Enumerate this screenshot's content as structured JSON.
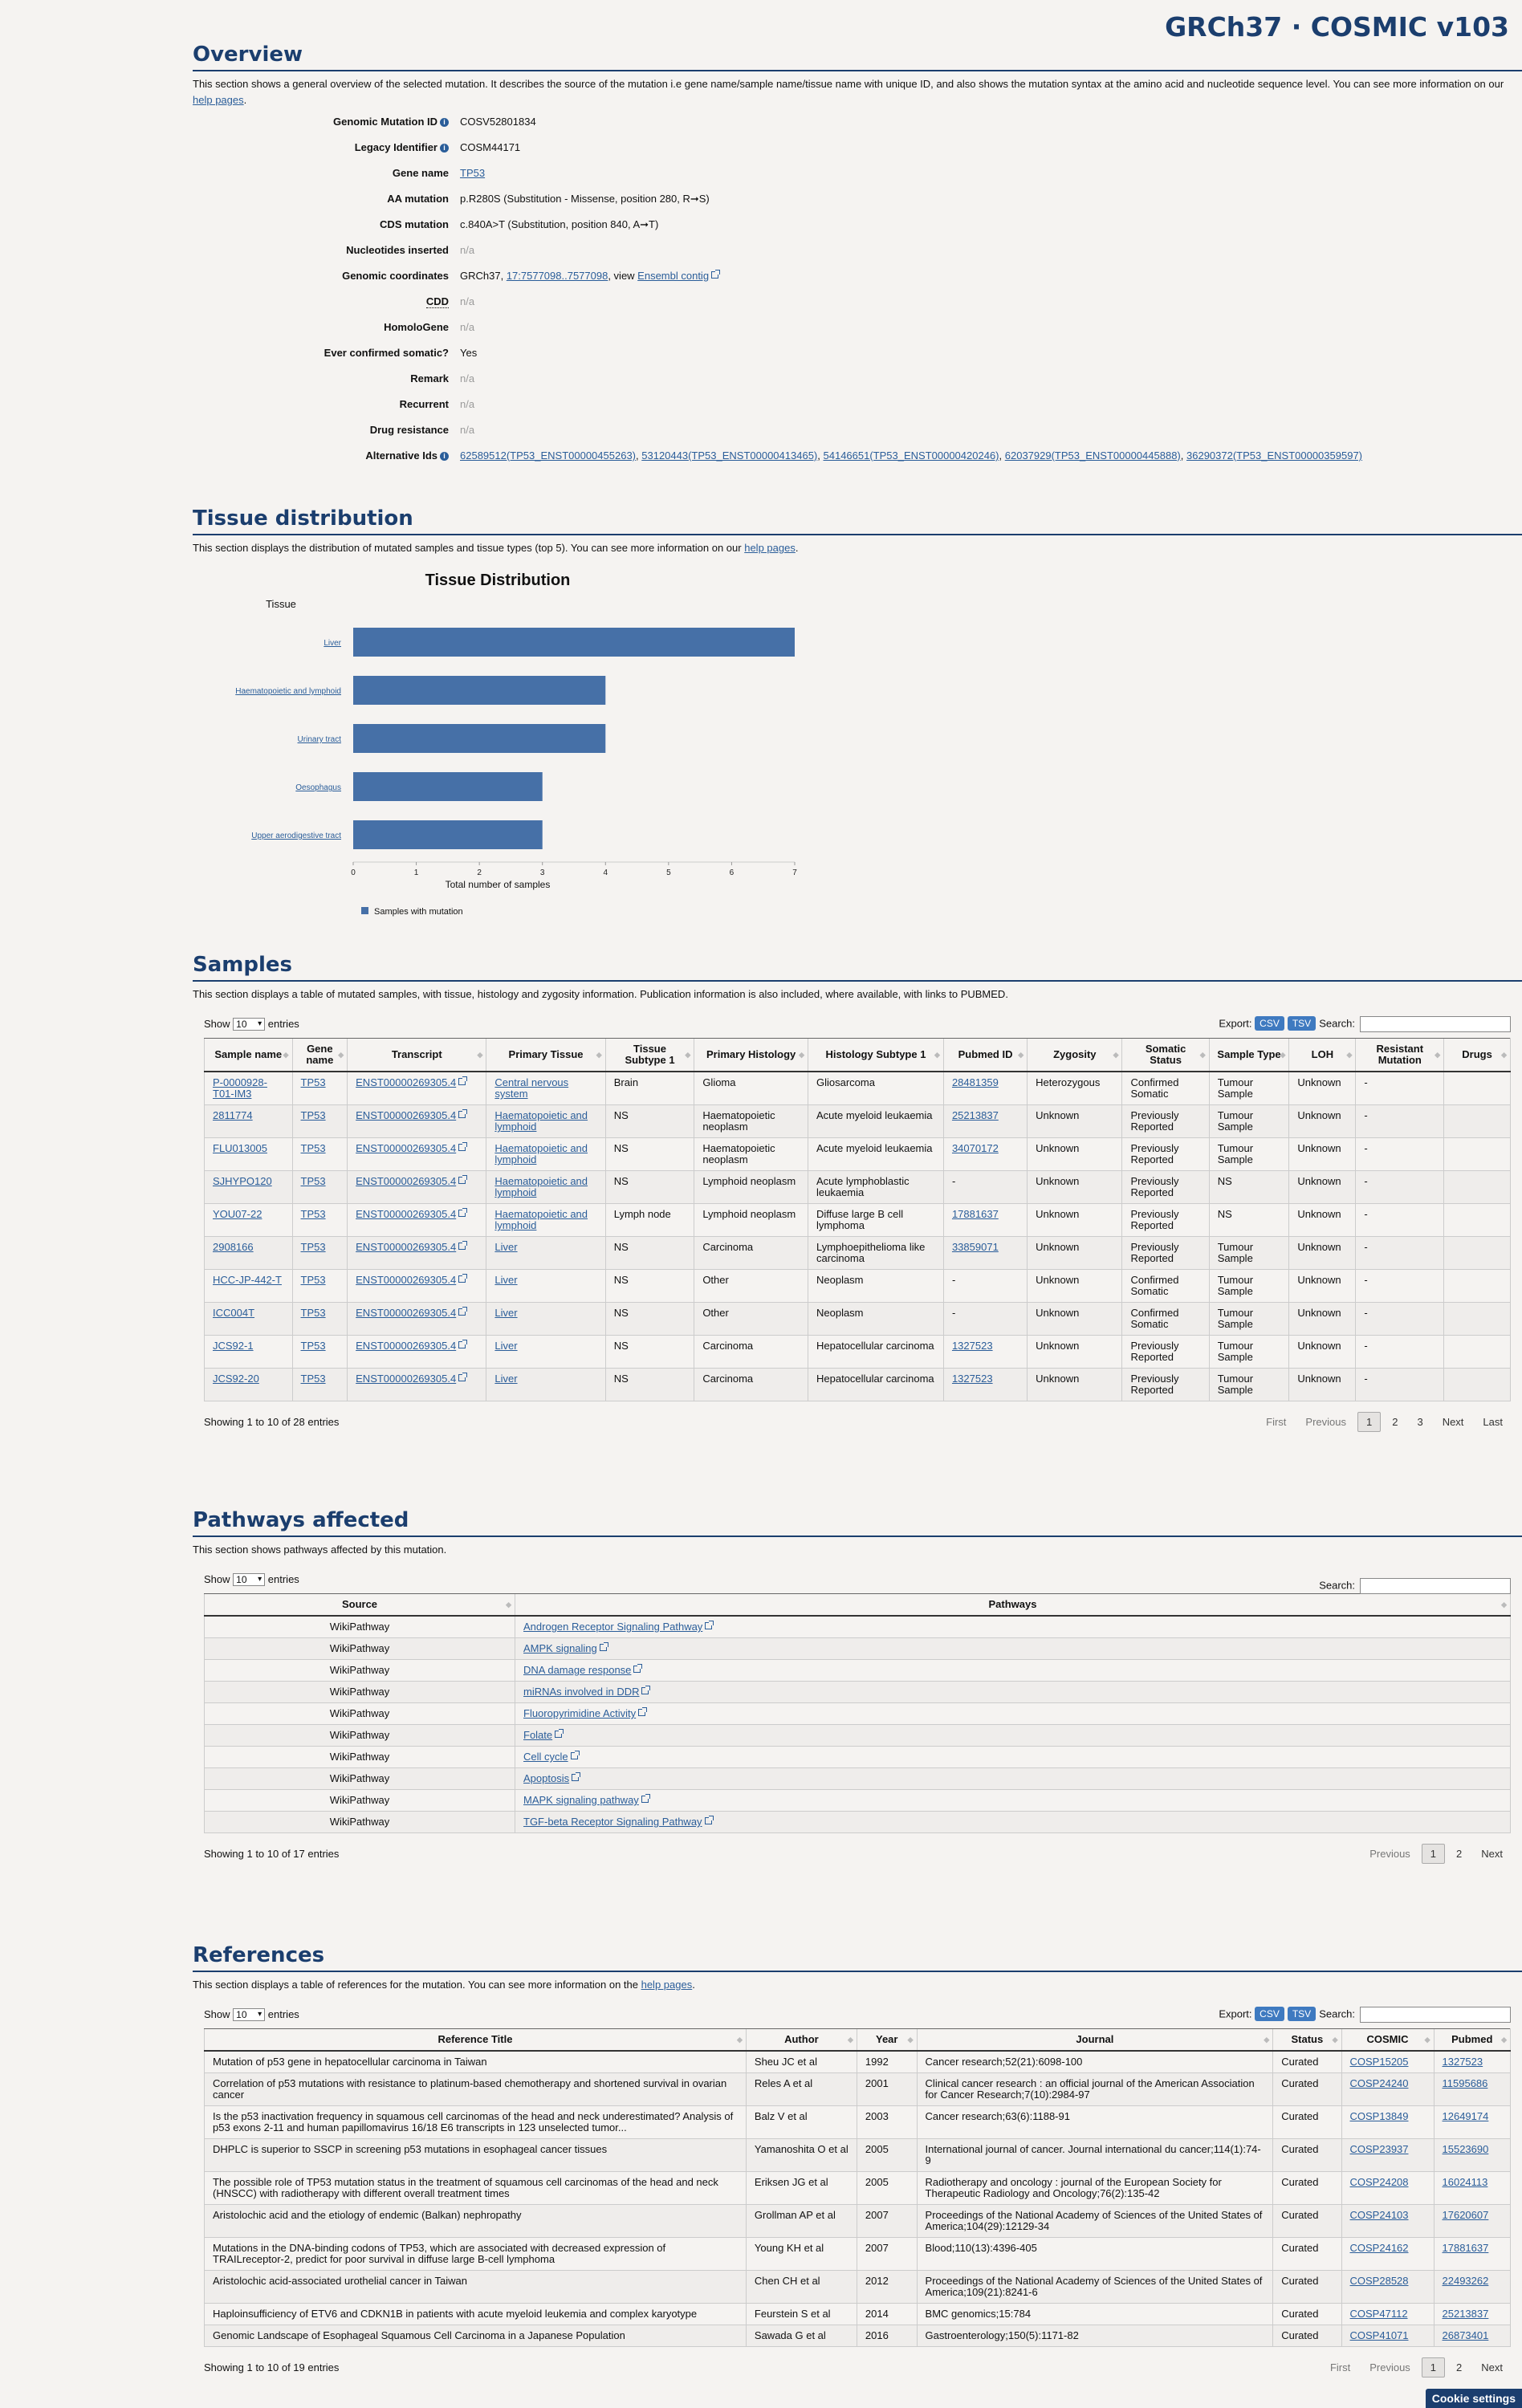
{
  "brand": "GRCh37 · COSMIC v103",
  "overview": {
    "title": "Overview",
    "desc_before": "This section shows a general overview of the selected mutation. It describes the source of the mutation i.e gene name/sample name/tissue name with unique ID, and also shows the mutation syntax at the amino acid and nucleotide sequence level. You can see more information on our ",
    "desc_link": "help pages",
    "desc_after": ".",
    "labels": {
      "genomic_mutation_id": "Genomic Mutation ID",
      "legacy_identifier": "Legacy Identifier",
      "gene_name": "Gene name",
      "aa_mutation": "AA mutation",
      "cds_mutation": "CDS mutation",
      "nucleotides_inserted": "Nucleotides inserted",
      "genomic_coordinates": "Genomic coordinates",
      "cdd": "CDD",
      "homologene": "HomoloGene",
      "ever_confirmed": "Ever confirmed somatic?",
      "remark": "Remark",
      "recurrent": "Recurrent",
      "drug_resistance": "Drug resistance",
      "alternative_ids": "Alternative Ids"
    },
    "values": {
      "genomic_mutation_id": "COSV52801834",
      "legacy_identifier": "COSM44171",
      "gene_name": "TP53",
      "aa_mutation": "p.R280S (Substitution - Missense, position 280, R➞S)",
      "cds_mutation": "c.840A>T (Substitution, position 840, A➞T)",
      "na": "n/a",
      "coord_prefix": "GRCh37, ",
      "coord_link": "17:7577098..7577098",
      "coord_mid": ", view ",
      "coord_link2": "Ensembl contig",
      "ever_confirmed": "Yes",
      "alt_ids": [
        "62589512(TP53_ENST00000455263)",
        "53120443(TP53_ENST00000413465)",
        "54146651(TP53_ENST00000420246)",
        "62037929(TP53_ENST00000445888)",
        "36290372(TP53_ENST00000359597)"
      ]
    }
  },
  "tissue": {
    "title": "Tissue distribution",
    "desc_before": "This section displays the distribution of mutated samples and tissue types (top 5). You can see more information on our ",
    "desc_link": "help pages",
    "desc_after": "."
  },
  "chart_data": {
    "type": "bar",
    "orientation": "horizontal",
    "title": "Tissue Distribution",
    "ylabel": "Tissue",
    "xlabel": "Total number of samples",
    "categories": [
      "Liver",
      "Haematopoietic and lymphoid",
      "Urinary tract",
      "Oesophagus",
      "Upper aerodigestive tract"
    ],
    "series": [
      {
        "name": "Samples with mutation",
        "values": [
          7,
          4,
          4,
          3,
          3
        ]
      }
    ],
    "xlim": [
      0,
      7
    ],
    "xticks": [
      "0",
      "1",
      "2",
      "3",
      "4",
      "5",
      "6",
      "7"
    ],
    "color": "#4670a7",
    "legend": "bottom-left",
    "grid": false
  },
  "samples": {
    "title": "Samples",
    "desc": "This section displays a table of mutated samples, with tissue, histology and zygosity information. Publication information is also included, where available, with links to PUBMED.",
    "show": "Show",
    "len": "10",
    "entries": "entries",
    "export": "Export:",
    "csv": "CSV",
    "tsv": "TSV",
    "search": "Search:",
    "columns": [
      "Sample name",
      "Gene name",
      "Transcript",
      "Primary Tissue",
      "Tissue Subtype 1",
      "Primary Histology",
      "Histology Subtype 1",
      "Pubmed ID",
      "Zygosity",
      "Somatic Status",
      "Sample Type",
      "LOH",
      "Resistant Mutation",
      "Drugs"
    ],
    "rows": [
      [
        "P-0000928-T01-IM3",
        "TP53",
        "ENST00000269305.4",
        "Central nervous system",
        "Brain",
        "Glioma",
        "Gliosarcoma",
        "28481359",
        "Heterozygous",
        "Confirmed Somatic",
        "Tumour Sample",
        "Unknown",
        "-",
        ""
      ],
      [
        "2811774",
        "TP53",
        "ENST00000269305.4",
        "Haematopoietic and lymphoid",
        "NS",
        "Haematopoietic neoplasm",
        "Acute myeloid leukaemia",
        "25213837",
        "Unknown",
        "Previously Reported",
        "Tumour Sample",
        "Unknown",
        "-",
        ""
      ],
      [
        "FLU013005",
        "TP53",
        "ENST00000269305.4",
        "Haematopoietic and lymphoid",
        "NS",
        "Haematopoietic neoplasm",
        "Acute myeloid leukaemia",
        "34070172",
        "Unknown",
        "Previously Reported",
        "Tumour Sample",
        "Unknown",
        "-",
        ""
      ],
      [
        "SJHYPO120",
        "TP53",
        "ENST00000269305.4",
        "Haematopoietic and lymphoid",
        "NS",
        "Lymphoid neoplasm",
        "Acute lymphoblastic leukaemia",
        "-",
        "Unknown",
        "Previously Reported",
        "NS",
        "Unknown",
        "-",
        ""
      ],
      [
        "YOU07-22",
        "TP53",
        "ENST00000269305.4",
        "Haematopoietic and lymphoid",
        "Lymph node",
        "Lymphoid neoplasm",
        "Diffuse large B cell lymphoma",
        "17881637",
        "Unknown",
        "Previously Reported",
        "NS",
        "Unknown",
        "-",
        ""
      ],
      [
        "2908166",
        "TP53",
        "ENST00000269305.4",
        "Liver",
        "NS",
        "Carcinoma",
        "Lymphoepithelioma like carcinoma",
        "33859071",
        "Unknown",
        "Previously Reported",
        "Tumour Sample",
        "Unknown",
        "-",
        ""
      ],
      [
        "HCC-JP-442-T",
        "TP53",
        "ENST00000269305.4",
        "Liver",
        "NS",
        "Other",
        "Neoplasm",
        "-",
        "Unknown",
        "Confirmed Somatic",
        "Tumour Sample",
        "Unknown",
        "-",
        ""
      ],
      [
        "ICC004T",
        "TP53",
        "ENST00000269305.4",
        "Liver",
        "NS",
        "Other",
        "Neoplasm",
        "-",
        "Unknown",
        "Confirmed Somatic",
        "Tumour Sample",
        "Unknown",
        "-",
        ""
      ],
      [
        "JCS92-1",
        "TP53",
        "ENST00000269305.4",
        "Liver",
        "NS",
        "Carcinoma",
        "Hepatocellular carcinoma",
        "1327523",
        "Unknown",
        "Previously Reported",
        "Tumour Sample",
        "Unknown",
        "-",
        ""
      ],
      [
        "JCS92-20",
        "TP53",
        "ENST00000269305.4",
        "Liver",
        "NS",
        "Carcinoma",
        "Hepatocellular carcinoma",
        "1327523",
        "Unknown",
        "Previously Reported",
        "Tumour Sample",
        "Unknown",
        "-",
        ""
      ]
    ],
    "info": "Showing 1 to 10 of 28 entries",
    "pager": [
      "First",
      "Previous",
      "1",
      "2",
      "3",
      "Next",
      "Last"
    ]
  },
  "pathways": {
    "title": "Pathways affected",
    "desc": "This section shows pathways affected by this mutation.",
    "show": "Show",
    "len": "10",
    "entries": "entries",
    "search": "Search:",
    "columns": [
      "Source",
      "Pathways"
    ],
    "rows": [
      [
        "WikiPathway",
        "Androgen Receptor Signaling Pathway"
      ],
      [
        "WikiPathway",
        "AMPK signaling"
      ],
      [
        "WikiPathway",
        "DNA damage response"
      ],
      [
        "WikiPathway",
        "miRNAs involved in DDR"
      ],
      [
        "WikiPathway",
        "Fluoropyrimidine Activity"
      ],
      [
        "WikiPathway",
        "Folate"
      ],
      [
        "WikiPathway",
        "Cell cycle"
      ],
      [
        "WikiPathway",
        "Apoptosis"
      ],
      [
        "WikiPathway",
        "MAPK signaling pathway"
      ],
      [
        "WikiPathway",
        "TGF-beta Receptor Signaling Pathway"
      ]
    ],
    "info": "Showing 1 to 10 of 17 entries",
    "pager": [
      "Previous",
      "1",
      "2",
      "Next"
    ]
  },
  "references": {
    "title": "References",
    "desc_before": "This section displays a table of references for the mutation. You can see more information on the ",
    "desc_link": "help pages",
    "desc_after": ".",
    "show": "Show",
    "len": "10",
    "entries": "entries",
    "export": "Export:",
    "csv": "CSV",
    "tsv": "TSV",
    "search": "Search:",
    "columns": [
      "Reference Title",
      "Author",
      "Year",
      "Journal",
      "Status",
      "COSMIC",
      "Pubmed"
    ],
    "rows": [
      [
        "Mutation of p53 gene in hepatocellular carcinoma in Taiwan",
        "Sheu JC et al",
        "1992",
        "Cancer research;52(21):6098-100",
        "Curated",
        "COSP15205",
        "1327523"
      ],
      [
        "Correlation of p53 mutations with resistance to platinum-based chemotherapy and shortened survival in ovarian cancer",
        "Reles A et al",
        "2001",
        "Clinical cancer research : an official journal of the American Association for Cancer Research;7(10):2984-97",
        "Curated",
        "COSP24240",
        "11595686"
      ],
      [
        "Is the p53 inactivation frequency in squamous cell carcinomas of the head and neck underestimated? Analysis of p53 exons 2-11 and human papillomavirus 16/18 E6 transcripts in 123 unselected tumor...",
        "Balz V et al",
        "2003",
        "Cancer research;63(6):1188-91",
        "Curated",
        "COSP13849",
        "12649174"
      ],
      [
        "DHPLC is superior to SSCP in screening p53 mutations in esophageal cancer tissues",
        "Yamanoshita O et al",
        "2005",
        "International journal of cancer. Journal international du cancer;114(1):74-9",
        "Curated",
        "COSP23937",
        "15523690"
      ],
      [
        "The possible role of TP53 mutation status in the treatment of squamous cell carcinomas of the head and neck (HNSCC) with radiotherapy with different overall treatment times",
        "Eriksen JG et al",
        "2005",
        "Radiotherapy and oncology : journal of the European Society for Therapeutic Radiology and Oncology;76(2):135-42",
        "Curated",
        "COSP24208",
        "16024113"
      ],
      [
        "Aristolochic acid and the etiology of endemic (Balkan) nephropathy",
        "Grollman AP et al",
        "2007",
        "Proceedings of the National Academy of Sciences of the United States of America;104(29):12129-34",
        "Curated",
        "COSP24103",
        "17620607"
      ],
      [
        "Mutations in the DNA-binding codons of TP53, which are associated with decreased expression of TRAILreceptor-2, predict for poor survival in diffuse large B-cell lymphoma",
        "Young KH et al",
        "2007",
        "Blood;110(13):4396-405",
        "Curated",
        "COSP24162",
        "17881637"
      ],
      [
        "Aristolochic acid-associated urothelial cancer in Taiwan",
        "Chen CH et al",
        "2012",
        "Proceedings of the National Academy of Sciences of the United States of America;109(21):8241-6",
        "Curated",
        "COSP28528",
        "22493262"
      ],
      [
        "Haploinsufficiency of ETV6 and CDKN1B in patients with acute myeloid leukemia and complex karyotype",
        "Feurstein S et al",
        "2014",
        "BMC genomics;15:784",
        "Curated",
        "COSP47112",
        "25213837"
      ],
      [
        "Genomic Landscape of Esophageal Squamous Cell Carcinoma in a Japanese Population",
        "Sawada G et al",
        "2016",
        "Gastroenterology;150(5):1171-82",
        "Curated",
        "COSP41071",
        "26873401"
      ]
    ],
    "info": "Showing 1 to 10 of 19 entries",
    "pager": [
      "First",
      "Previous",
      "1",
      "2",
      "Next"
    ]
  },
  "cookie": "Cookie settings"
}
